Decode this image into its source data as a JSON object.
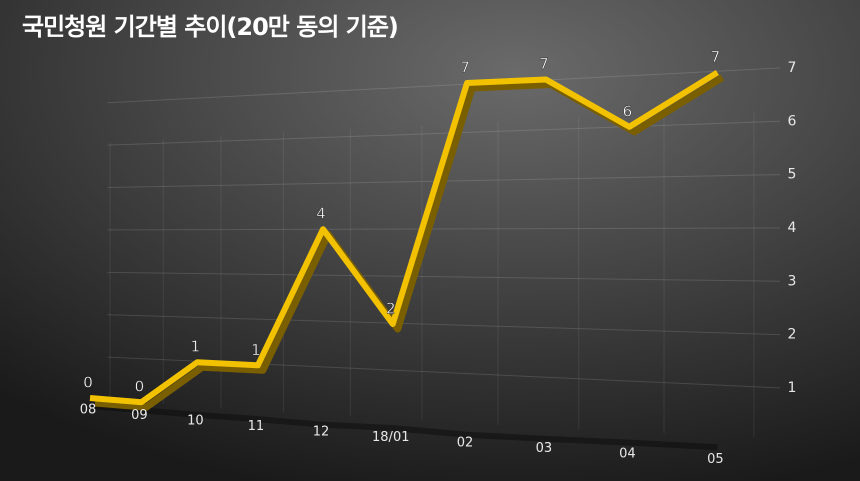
{
  "chart_data": {
    "type": "line",
    "title": "국민청원 기간별 추이(20만 동의 기준)",
    "categories": [
      "08",
      "09",
      "10",
      "11",
      "12",
      "18/01",
      "02",
      "03",
      "04",
      "05"
    ],
    "values": [
      0,
      0,
      1,
      1,
      4,
      2,
      7,
      7,
      6,
      7
    ],
    "color": "#f2c200",
    "ylim": [
      0,
      7
    ],
    "yticks": [
      1,
      2,
      3,
      4,
      5,
      6,
      7
    ],
    "grid": true
  }
}
